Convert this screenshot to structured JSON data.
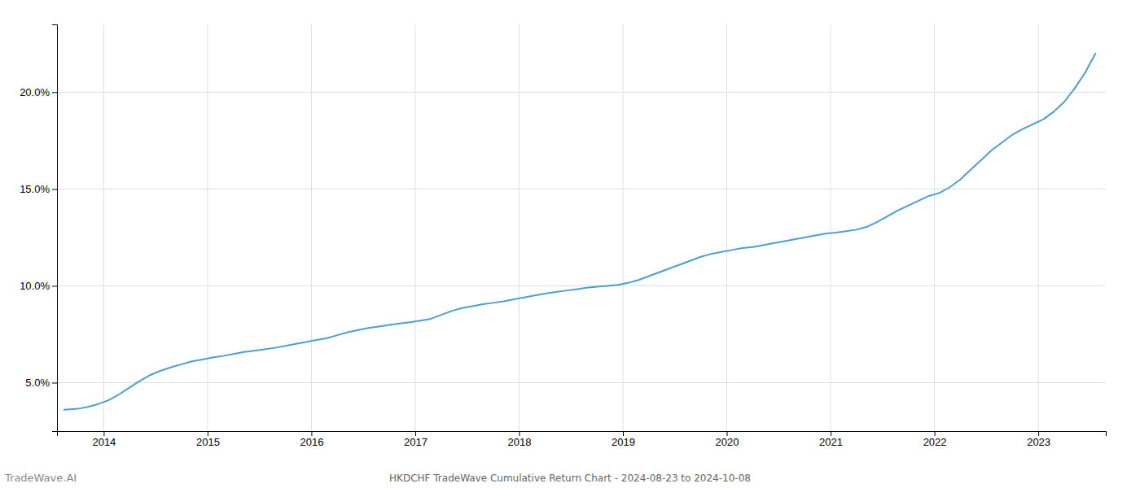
{
  "chart_data": {
    "type": "line",
    "title": "HKDCHF TradeWave Cumulative Return Chart - 2024-08-23 to 2024-10-08",
    "annotations": [
      "TradeWave.AI"
    ],
    "color": "#4a9fd4",
    "grid": true,
    "x": [
      2013.62,
      2013.75,
      2013.85,
      2013.95,
      2014.05,
      2014.15,
      2014.25,
      2014.35,
      2014.45,
      2014.55,
      2014.65,
      2014.75,
      2014.85,
      2014.95,
      2015.05,
      2015.15,
      2015.25,
      2015.35,
      2015.45,
      2015.55,
      2015.65,
      2015.75,
      2015.85,
      2015.95,
      2016.05,
      2016.15,
      2016.25,
      2016.35,
      2016.45,
      2016.55,
      2016.65,
      2016.75,
      2016.85,
      2016.95,
      2017.05,
      2017.15,
      2017.25,
      2017.35,
      2017.45,
      2017.55,
      2017.65,
      2017.75,
      2017.85,
      2017.95,
      2018.05,
      2018.15,
      2018.25,
      2018.35,
      2018.45,
      2018.55,
      2018.65,
      2018.75,
      2018.85,
      2018.95,
      2019.05,
      2019.15,
      2019.25,
      2019.35,
      2019.45,
      2019.55,
      2019.65,
      2019.75,
      2019.85,
      2019.95,
      2020.05,
      2020.15,
      2020.25,
      2020.35,
      2020.45,
      2020.55,
      2020.65,
      2020.75,
      2020.85,
      2020.95,
      2021.05,
      2021.15,
      2021.25,
      2021.35,
      2021.45,
      2021.55,
      2021.65,
      2021.75,
      2021.85,
      2021.95,
      2022.05,
      2022.15,
      2022.25,
      2022.35,
      2022.45,
      2022.55,
      2022.65,
      2022.75,
      2022.85,
      2022.95,
      2023.05,
      2023.15,
      2023.25,
      2023.35,
      2023.45,
      2023.55
    ],
    "values": [
      3.6,
      3.65,
      3.75,
      3.9,
      4.1,
      4.4,
      4.75,
      5.1,
      5.4,
      5.62,
      5.8,
      5.95,
      6.1,
      6.2,
      6.3,
      6.38,
      6.48,
      6.58,
      6.65,
      6.72,
      6.8,
      6.9,
      7.0,
      7.1,
      7.2,
      7.3,
      7.45,
      7.6,
      7.72,
      7.82,
      7.9,
      7.98,
      8.05,
      8.12,
      8.2,
      8.3,
      8.5,
      8.7,
      8.85,
      8.95,
      9.05,
      9.12,
      9.2,
      9.3,
      9.4,
      9.5,
      9.6,
      9.68,
      9.75,
      9.82,
      9.9,
      9.95,
      10.0,
      10.05,
      10.15,
      10.3,
      10.5,
      10.7,
      10.9,
      11.1,
      11.3,
      11.5,
      11.65,
      11.75,
      11.85,
      11.95,
      12.0,
      12.1,
      12.2,
      12.3,
      12.4,
      12.5,
      12.6,
      12.7,
      12.75,
      12.82,
      12.9,
      13.05,
      13.3,
      13.6,
      13.9,
      14.15,
      14.4,
      14.65,
      14.8,
      15.1,
      15.5,
      16.0,
      16.5,
      17.0,
      17.4,
      17.8,
      18.1,
      18.35,
      18.6,
      19.0,
      19.5,
      20.2,
      21.0,
      22.0
    ],
    "xlim": [
      2013.55,
      2023.65
    ],
    "xticks": [
      2014,
      2015,
      2016,
      2017,
      2018,
      2019,
      2020,
      2021,
      2022,
      2023
    ],
    "ylim": [
      2.5,
      23.5
    ],
    "yticks": [
      {
        "value": 5.0,
        "label": "5.0%"
      },
      {
        "value": 10.0,
        "label": "10.0%"
      },
      {
        "value": 15.0,
        "label": "15.0%"
      },
      {
        "value": 20.0,
        "label": "20.0%"
      }
    ]
  }
}
